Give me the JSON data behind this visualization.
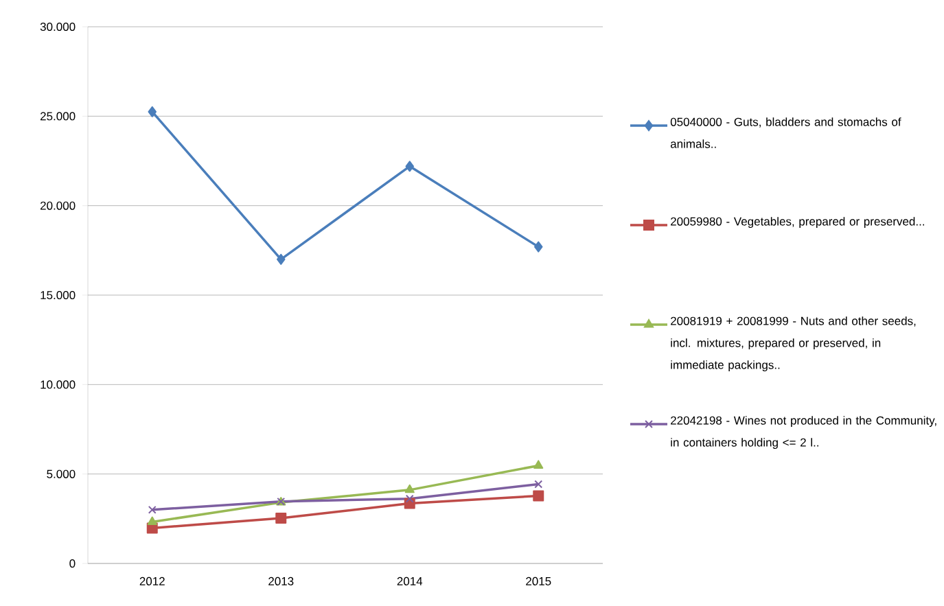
{
  "chart_data": {
    "type": "line",
    "categories": [
      "2012",
      "2013",
      "2014",
      "2015"
    ],
    "series": [
      {
        "name": "05040000 - Guts, bladders and stomachs of animals..",
        "color": "#4a7ebb",
        "marker": "diamond",
        "values": [
          25250,
          17000,
          22200,
          17700
        ]
      },
      {
        "name": "20059980 - Vegetables, prepared or preserved...",
        "color": "#be4b48",
        "marker": "square",
        "values": [
          1980,
          2530,
          3360,
          3780
        ]
      },
      {
        "name": "20081919 + 20081999 - Nuts and other seeds, incl. mixtures, prepared or preserved, in immediate packings..",
        "color": "#98b954",
        "marker": "triangle",
        "values": [
          2320,
          3410,
          4110,
          5470
        ]
      },
      {
        "name": "22042198 - Wines not produced in the Community, in containers holding <= 2 l..",
        "color": "#7d5fa0",
        "marker": "cross",
        "values": [
          3000,
          3460,
          3620,
          4430
        ]
      }
    ],
    "ylim": [
      0,
      30000
    ],
    "yticks": [
      0,
      {
        "value": 5000,
        "label": "5.000"
      },
      {
        "value": 10000,
        "label": "10.000"
      },
      {
        "value": 15000,
        "label": "15.000"
      },
      {
        "value": 20000,
        "label": "20.000"
      },
      {
        "value": 25000,
        "label": "25.000"
      },
      {
        "value": 30000,
        "label": "30.000"
      }
    ],
    "grid": "y",
    "legend": "right",
    "line_style": "solid"
  }
}
